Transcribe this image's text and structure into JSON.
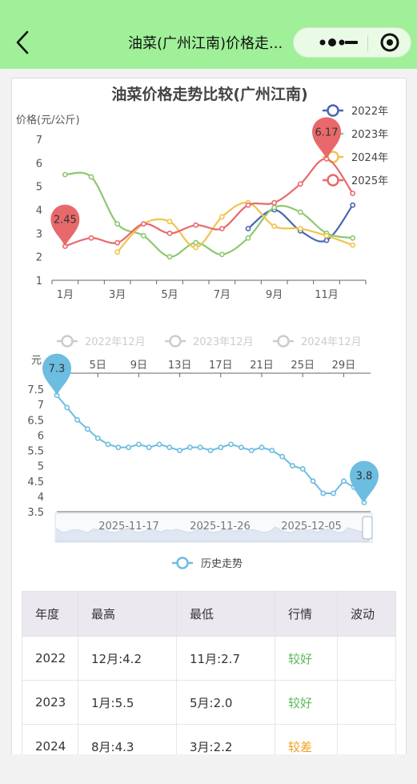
{
  "topbar": {
    "title": "油菜(广州江南)价格走...",
    "bg": "#9ff098"
  },
  "icons": {
    "back": "chevron-left-icon",
    "more": "more-dots-icon",
    "minimize": "minus-icon",
    "close": "target-circle-icon"
  },
  "chart_data": [
    {
      "type": "line",
      "title": "油菜价格走势比较(广州江南)",
      "ylabel": "价格(元/公斤)",
      "x": [
        1,
        2,
        3,
        4,
        5,
        6,
        7,
        8,
        9,
        10,
        11,
        12
      ],
      "xtick_labels": [
        "1月",
        "3月",
        "5月",
        "7月",
        "9月",
        "11月"
      ],
      "ylim": [
        1,
        7
      ],
      "yticks": [
        1,
        2,
        3,
        4,
        5,
        6,
        7
      ],
      "legend_position": "top-right",
      "series": [
        {
          "name": "2022年",
          "color": "#4a66b0",
          "values": [
            null,
            null,
            null,
            null,
            null,
            null,
            null,
            3.2,
            4.0,
            3.1,
            2.7,
            4.2
          ]
        },
        {
          "name": "2023年",
          "color": "#8cc96f",
          "values": [
            5.5,
            5.4,
            3.4,
            2.9,
            2.0,
            2.6,
            2.1,
            2.8,
            4.1,
            3.9,
            3.0,
            2.8
          ]
        },
        {
          "name": "2024年",
          "color": "#f2c34e",
          "values": [
            null,
            null,
            2.2,
            3.4,
            3.5,
            2.4,
            3.7,
            4.3,
            3.3,
            3.2,
            2.9,
            2.5
          ]
        },
        {
          "name": "2025年",
          "color": "#e8696b",
          "values": [
            2.45,
            2.8,
            2.6,
            3.4,
            3.0,
            3.35,
            3.2,
            4.2,
            4.3,
            5.1,
            6.17,
            4.7
          ]
        }
      ],
      "markers": [
        {
          "series": "2025年",
          "x": 1,
          "y": 2.45,
          "label": "2.45",
          "color": "#e8696b"
        },
        {
          "series": "2025年",
          "x": 11,
          "y": 6.17,
          "label": "6.17",
          "color": "#e8696b"
        }
      ]
    },
    {
      "type": "line",
      "ylabel": "元",
      "legend_top": [
        "2022年12月",
        "2023年12月",
        "2024年12月"
      ],
      "xtick_labels": [
        "5日",
        "9日",
        "13日",
        "17日",
        "21日",
        "25日",
        "29日"
      ],
      "ylim": [
        3.5,
        7.5
      ],
      "yticks": [
        3.5,
        4,
        4.5,
        5,
        5.5,
        6,
        6.5,
        7,
        7.5
      ],
      "series": [
        {
          "name": "历史走势",
          "color": "#6cbde0",
          "values": [
            7.3,
            6.9,
            6.5,
            6.2,
            5.9,
            5.7,
            5.6,
            5.6,
            5.7,
            5.6,
            5.7,
            5.6,
            5.5,
            5.6,
            5.6,
            5.5,
            5.6,
            5.7,
            5.6,
            5.5,
            5.6,
            5.5,
            5.3,
            5.0,
            4.9,
            4.5,
            4.1,
            4.1,
            4.5,
            4.3,
            3.8
          ]
        }
      ],
      "markers": [
        {
          "label": "7.3",
          "value": 7.3,
          "color": "#6cbde0"
        },
        {
          "label": "3.8",
          "value": 3.8,
          "color": "#6cbde0"
        }
      ],
      "zoom_dates": [
        "2025-11-17",
        "2025-11-26",
        "2025-12-05"
      ],
      "legend_bottom": "历史走势"
    }
  ],
  "table": {
    "headers": [
      "年度",
      "最高",
      "最低",
      "行情",
      "波动"
    ],
    "rows": [
      {
        "year": "2022",
        "high": "12月:4.2",
        "low": "11月:2.7",
        "trend": "较好",
        "trend_class": "good",
        "wave": ""
      },
      {
        "year": "2023",
        "high": "1月:5.5",
        "low": "5月:2.0",
        "trend": "较好",
        "trend_class": "good",
        "wave": ""
      },
      {
        "year": "2024",
        "high": "8月:4.3",
        "low": "3月:2.2",
        "trend": "较差",
        "trend_class": "bad",
        "wave": ""
      }
    ]
  }
}
